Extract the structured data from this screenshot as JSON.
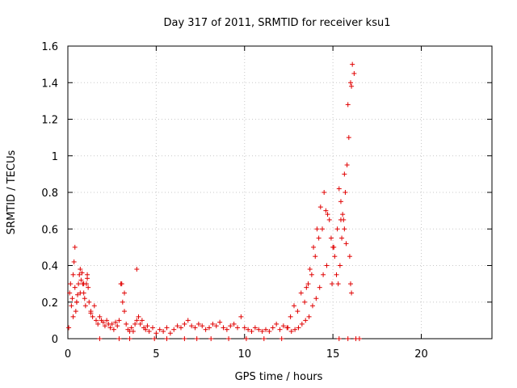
{
  "chart_data": {
    "type": "scatter",
    "title": "Day 317 of 2011, SRMTID for receiver ksu1",
    "xlabel": "GPS time / hours",
    "ylabel": "SRMTID / TECUs",
    "xlim": [
      0,
      24
    ],
    "ylim": [
      0,
      1.6
    ],
    "xticks": [
      0,
      5,
      10,
      15,
      20
    ],
    "xtick_labels": [
      "0",
      "5",
      "10",
      "15",
      "20"
    ],
    "yticks": [
      0,
      0.2,
      0.4,
      0.6,
      0.8,
      1.0,
      1.2,
      1.4,
      1.6
    ],
    "ytick_labels": [
      "0",
      "0.2",
      "0.4",
      "0.6",
      "0.8",
      "1",
      "1.2",
      "1.4",
      "1.6"
    ],
    "grid": true,
    "marker": "plus",
    "color": "#e00000",
    "series": [
      {
        "name": "SRMTID",
        "x": [
          0.05,
          0.1,
          0.15,
          0.2,
          0.25,
          0.3,
          0.35,
          0.4,
          0.45,
          0.5,
          0.55,
          0.6,
          0.65,
          0.7,
          0.75,
          0.8,
          0.85,
          0.9,
          0.95,
          1.0,
          1.05,
          1.1,
          1.15,
          1.2,
          1.3,
          1.4,
          1.5,
          1.6,
          1.7,
          1.8,
          1.9,
          2.0,
          2.1,
          2.2,
          2.3,
          2.4,
          2.5,
          2.6,
          2.7,
          2.8,
          2.9,
          3.0,
          3.1,
          3.2,
          3.3,
          3.4,
          3.5,
          3.6,
          3.7,
          3.8,
          3.9,
          4.0,
          4.1,
          4.2,
          4.3,
          4.4,
          4.5,
          4.6,
          4.8,
          5.0,
          5.2,
          5.4,
          5.6,
          5.8,
          6.0,
          6.2,
          6.4,
          6.6,
          6.8,
          7.0,
          7.2,
          7.4,
          7.6,
          7.8,
          8.0,
          8.2,
          8.4,
          8.6,
          8.8,
          9.0,
          9.2,
          9.4,
          9.6,
          9.8,
          10.0,
          10.2,
          10.4,
          10.6,
          10.8,
          11.0,
          11.2,
          11.4,
          11.6,
          11.8,
          12.0,
          12.2,
          12.4,
          12.6,
          12.8,
          13.0,
          13.2,
          13.4,
          13.6,
          13.8,
          14.0,
          14.2,
          14.4,
          14.6,
          14.8,
          15.0,
          15.1,
          15.2,
          15.3,
          15.4,
          15.5,
          15.6,
          15.7,
          15.8,
          15.9,
          16.0,
          16.1,
          16.2,
          0.3,
          0.5,
          0.7,
          0.9,
          1.1,
          1.3,
          3.05,
          3.2,
          13.5,
          13.7,
          13.9,
          14.1,
          14.3,
          14.5,
          14.7,
          14.9,
          15.05,
          15.25,
          15.45,
          15.65,
          15.85,
          16.05,
          3.9,
          0.4,
          15.95,
          16.0,
          16.05,
          15.75,
          15.65,
          15.55,
          15.45,
          15.35,
          14.95,
          14.65,
          14.45,
          14.25,
          14.05,
          13.85,
          13.65,
          13.45,
          13.25,
          13.05,
          12.85,
          12.65,
          12.45,
          1.8,
          2.9,
          3.5,
          4.9,
          5.6,
          6.6,
          7.3,
          8.1,
          9.1,
          10.1,
          11.1,
          12.1,
          15.35,
          15.85,
          16.3,
          16.5
        ],
        "y": [
          0.06,
          0.25,
          0.3,
          0.18,
          0.22,
          0.35,
          0.42,
          0.28,
          0.15,
          0.2,
          0.24,
          0.3,
          0.35,
          0.38,
          0.32,
          0.36,
          0.3,
          0.25,
          0.22,
          0.18,
          0.3,
          0.35,
          0.28,
          0.2,
          0.14,
          0.12,
          0.18,
          0.1,
          0.08,
          0.12,
          0.1,
          0.09,
          0.07,
          0.1,
          0.08,
          0.06,
          0.08,
          0.05,
          0.09,
          0.07,
          0.1,
          0.3,
          0.2,
          0.15,
          0.08,
          0.05,
          0.04,
          0.06,
          0.04,
          0.08,
          0.1,
          0.12,
          0.08,
          0.1,
          0.06,
          0.05,
          0.07,
          0.04,
          0.06,
          0.03,
          0.05,
          0.04,
          0.06,
          0.03,
          0.05,
          0.07,
          0.06,
          0.08,
          0.1,
          0.07,
          0.06,
          0.08,
          0.07,
          0.05,
          0.06,
          0.08,
          0.07,
          0.09,
          0.06,
          0.05,
          0.07,
          0.08,
          0.06,
          0.12,
          0.06,
          0.05,
          0.04,
          0.06,
          0.05,
          0.04,
          0.05,
          0.04,
          0.06,
          0.08,
          0.05,
          0.07,
          0.06,
          0.12,
          0.18,
          0.15,
          0.25,
          0.2,
          0.3,
          0.35,
          0.45,
          0.55,
          0.6,
          0.7,
          0.65,
          0.5,
          0.45,
          0.35,
          0.3,
          0.4,
          0.55,
          0.65,
          0.8,
          0.95,
          1.1,
          1.4,
          1.5,
          1.45,
          0.12,
          0.2,
          0.25,
          0.3,
          0.33,
          0.15,
          0.3,
          0.25,
          0.28,
          0.38,
          0.5,
          0.6,
          0.72,
          0.8,
          0.68,
          0.55,
          0.5,
          0.6,
          0.65,
          0.9,
          1.28,
          1.38,
          0.38,
          0.5,
          0.45,
          0.3,
          0.25,
          0.52,
          0.6,
          0.68,
          0.75,
          0.82,
          0.3,
          0.4,
          0.35,
          0.28,
          0.22,
          0.18,
          0.12,
          0.1,
          0.08,
          0.06,
          0.05,
          0.04,
          0.06,
          0.0,
          0.0,
          0.0,
          0.0,
          0.0,
          0.0,
          0.0,
          0.0,
          0.0,
          0.0,
          0.0,
          0.0,
          0.0,
          0.0,
          0.0,
          0.0
        ]
      }
    ]
  }
}
